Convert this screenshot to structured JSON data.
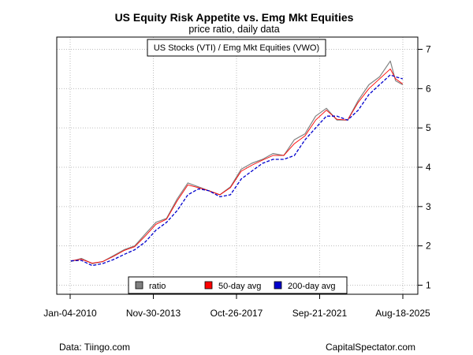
{
  "footer": {
    "source": "Data: Tiingo.com",
    "credit": "CapitalSpectator.com"
  },
  "chart_data": {
    "type": "line",
    "title": "US Equity Risk Appetite vs. Emg Mkt Equities",
    "subtitle": "price ratio, daily data",
    "annotation": "US Stocks (VTI) / Emg Mkt Equities (VWO)",
    "xlabel": "",
    "ylabel": "",
    "x_ticks": [
      "Jan-04-2010",
      "Nov-30-2013",
      "Oct-26-2017",
      "Sep-21-2021",
      "Aug-18-2025"
    ],
    "y_ticks": [
      1,
      2,
      3,
      4,
      5,
      6,
      7
    ],
    "y_axis_side": "right",
    "ylim": [
      0.7,
      7.3
    ],
    "grid": true,
    "legend_position": "bottom-center",
    "series": [
      {
        "name": "ratio",
        "color": "#808080",
        "x": [
          "2010-01",
          "2010-07",
          "2011-01",
          "2011-07",
          "2012-01",
          "2012-07",
          "2013-01",
          "2013-07",
          "2014-01",
          "2014-07",
          "2015-01",
          "2015-07",
          "2016-01",
          "2016-07",
          "2017-01",
          "2017-07",
          "2018-01",
          "2018-07",
          "2019-01",
          "2019-07",
          "2020-01",
          "2020-07",
          "2021-01",
          "2021-07",
          "2022-01",
          "2022-07",
          "2023-01",
          "2023-07",
          "2024-01",
          "2024-07",
          "2025-01",
          "2025-04",
          "2025-08"
        ],
        "values": [
          1.6,
          1.68,
          1.55,
          1.6,
          1.75,
          1.9,
          2.0,
          2.3,
          2.6,
          2.7,
          3.2,
          3.6,
          3.5,
          3.4,
          3.3,
          3.5,
          3.95,
          4.1,
          4.2,
          4.35,
          4.3,
          4.7,
          4.85,
          5.3,
          5.5,
          5.2,
          5.2,
          5.7,
          6.1,
          6.3,
          6.7,
          6.2,
          6.1
        ]
      },
      {
        "name": "50-day avg",
        "color": "#ff0000",
        "x": [
          "2010-01",
          "2010-07",
          "2011-01",
          "2011-07",
          "2012-01",
          "2012-07",
          "2013-01",
          "2013-07",
          "2014-01",
          "2014-07",
          "2015-01",
          "2015-07",
          "2016-01",
          "2016-07",
          "2017-01",
          "2017-07",
          "2018-01",
          "2018-07",
          "2019-01",
          "2019-07",
          "2020-01",
          "2020-07",
          "2021-01",
          "2021-07",
          "2022-01",
          "2022-07",
          "2023-01",
          "2023-07",
          "2024-01",
          "2024-07",
          "2025-01",
          "2025-04",
          "2025-08"
        ],
        "values": [
          1.62,
          1.66,
          1.56,
          1.6,
          1.73,
          1.88,
          1.98,
          2.25,
          2.55,
          2.68,
          3.15,
          3.55,
          3.48,
          3.4,
          3.3,
          3.48,
          3.9,
          4.05,
          4.18,
          4.3,
          4.3,
          4.6,
          4.8,
          5.2,
          5.45,
          5.22,
          5.2,
          5.65,
          6.0,
          6.25,
          6.5,
          6.25,
          6.12
        ]
      },
      {
        "name": "200-day avg",
        "color": "#0000cd",
        "x": [
          "2010-01",
          "2010-07",
          "2011-01",
          "2011-07",
          "2012-01",
          "2012-07",
          "2013-01",
          "2013-07",
          "2014-01",
          "2014-07",
          "2015-01",
          "2015-07",
          "2016-01",
          "2016-07",
          "2017-01",
          "2017-07",
          "2018-01",
          "2018-07",
          "2019-01",
          "2019-07",
          "2020-01",
          "2020-07",
          "2021-01",
          "2021-07",
          "2022-01",
          "2022-07",
          "2023-01",
          "2023-07",
          "2024-01",
          "2024-07",
          "2025-01",
          "2025-04",
          "2025-08"
        ],
        "values": [
          1.62,
          1.63,
          1.5,
          1.55,
          1.65,
          1.78,
          1.9,
          2.1,
          2.4,
          2.6,
          2.9,
          3.3,
          3.45,
          3.4,
          3.25,
          3.3,
          3.7,
          3.9,
          4.1,
          4.2,
          4.2,
          4.3,
          4.7,
          5.0,
          5.3,
          5.3,
          5.2,
          5.45,
          5.85,
          6.1,
          6.35,
          6.3,
          6.25
        ]
      }
    ]
  }
}
